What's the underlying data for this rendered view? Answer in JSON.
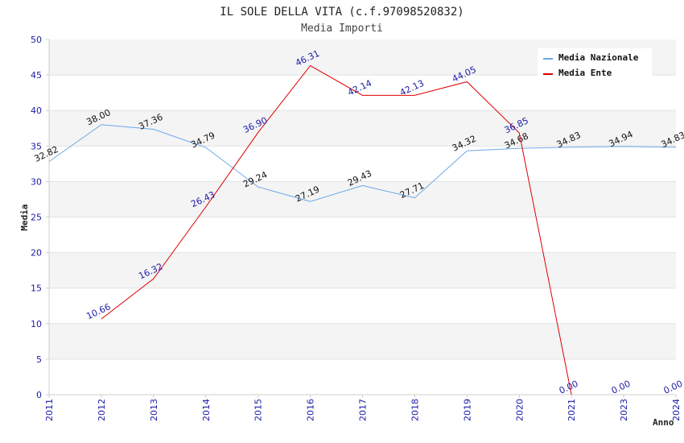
{
  "chart_data": {
    "type": "line",
    "title": "IL SOLE DELLA VITA (c.f.97098520832)",
    "subtitle": "Media Importi",
    "xlabel": "Anno",
    "ylabel": "Media",
    "ylim": [
      0,
      50
    ],
    "yticks": [
      "0",
      "5",
      "10",
      "15",
      "20",
      "25",
      "30",
      "35",
      "40",
      "45",
      "50"
    ],
    "categories": [
      "2011",
      "2012",
      "2013",
      "2014",
      "2015",
      "2016",
      "2017",
      "2018",
      "2019",
      "2020",
      "2021",
      "2023",
      "2024"
    ],
    "grid": "horizontal bands",
    "legend_position": "top-right",
    "series": [
      {
        "name": "Media Nazionale",
        "color": "#6aa8e8",
        "values": [
          32.82,
          38.0,
          37.36,
          34.79,
          29.24,
          27.19,
          29.43,
          27.71,
          34.32,
          34.68,
          34.83,
          34.94,
          34.83
        ],
        "labels": [
          "32.82",
          "38.00",
          "37.36",
          "34.79",
          "29.24",
          "27.19",
          "29.43",
          "27.71",
          "34.32",
          "34.68",
          "34.83",
          "34.94",
          "34.83"
        ]
      },
      {
        "name": "Media Ente",
        "color": "#dd0000",
        "values": [
          null,
          10.66,
          16.32,
          26.43,
          36.9,
          46.31,
          42.14,
          42.13,
          44.05,
          36.85,
          0.0,
          0.0,
          0.0
        ],
        "labels": [
          null,
          "10.66",
          "16.32",
          "26.43",
          "36.90",
          "46.31",
          "42.14",
          "42.13",
          "44.05",
          "36.85",
          "0.00",
          "0.00",
          "0.00"
        ],
        "line_points": 11
      }
    ]
  }
}
